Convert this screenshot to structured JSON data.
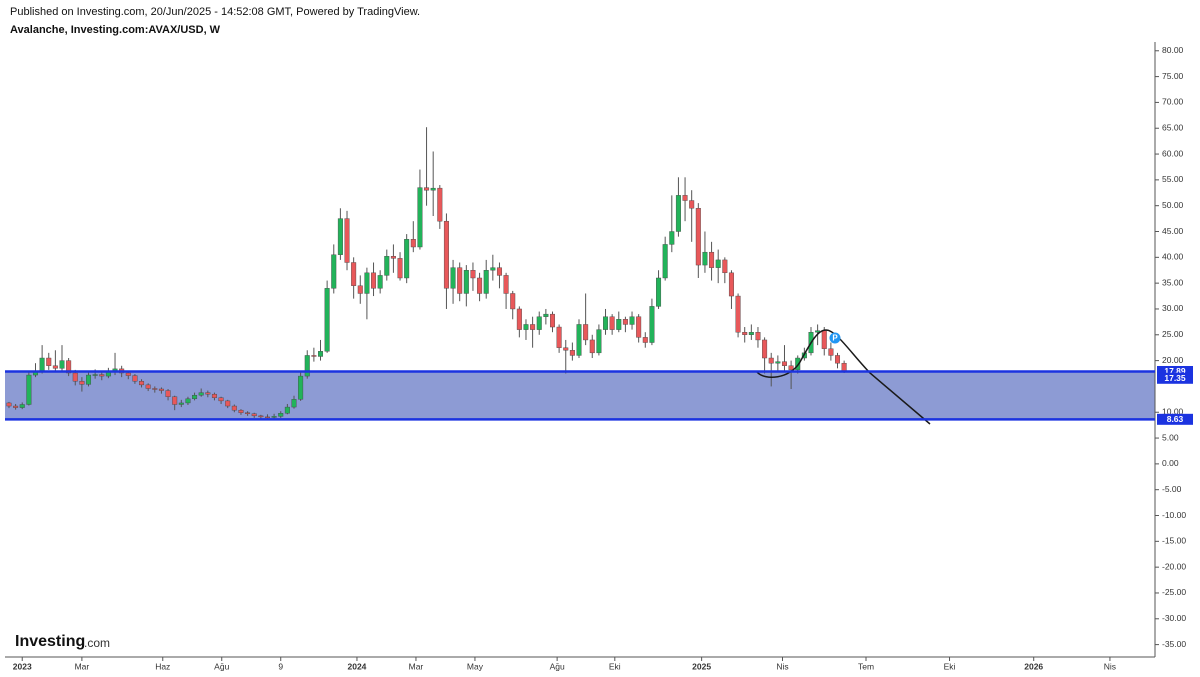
{
  "source": "Published on Investing.com, 20/Jun/2025 - 14:52:08 GMT, Powered by TradingView.",
  "chart_data": {
    "type": "candlestick",
    "title": "Avalanche, Investing.com:AVAX/USD, W",
    "open": [
      11.8,
      11.2,
      10.9,
      11.5,
      17.2,
      18.0,
      20.5,
      19.0,
      18.5,
      20.0,
      17.6,
      16.0,
      15.4,
      17.2,
      17.3,
      17.0,
      17.8,
      18.4,
      17.6,
      17.1,
      16.0,
      15.3,
      14.6,
      14.5,
      14.2,
      13.0,
      11.5,
      11.8,
      12.6,
      13.3,
      13.8,
      13.5,
      12.8,
      12.2,
      11.2,
      10.4,
      9.9,
      9.7,
      9.3,
      9.1,
      9.0,
      9.2,
      9.8,
      11.0,
      12.5,
      17.0,
      21.0,
      20.8,
      21.8,
      34.0,
      40.5,
      47.5,
      39.0,
      34.5,
      33.0,
      37.0,
      34.0,
      36.5,
      40.2,
      39.8,
      36.0,
      43.5,
      42.0,
      53.5,
      53.0,
      53.4,
      47.0,
      34.0,
      38.0,
      33.0,
      37.5,
      36.0,
      33.0,
      37.5,
      38.0,
      36.5,
      33.0,
      30.0,
      26.0,
      27.0,
      26.0,
      28.5,
      29.0,
      26.5,
      22.5,
      22.0,
      21.0,
      27.0,
      24.0,
      21.5,
      26.0,
      28.5,
      26.0,
      28.0,
      27.0,
      28.5,
      24.5,
      23.5,
      30.5,
      36.0,
      42.5,
      45.0,
      52.0,
      51.0,
      49.5,
      38.5,
      41.0,
      38.0,
      39.5,
      37.0,
      32.5,
      25.5,
      25.0,
      25.5,
      24.0,
      20.5,
      19.5,
      19.8,
      19.0,
      18.2,
      20.5,
      21.5,
      25.5,
      25.8,
      22.3,
      21.0,
      19.5
    ],
    "high": [
      12.0,
      11.6,
      11.9,
      18.0,
      19.5,
      23.0,
      21.5,
      22.0,
      23.0,
      20.5,
      18.2,
      16.8,
      17.8,
      18.3,
      18.0,
      18.6,
      21.5,
      19.0,
      18.0,
      17.4,
      16.4,
      15.6,
      15.0,
      14.8,
      14.5,
      13.2,
      12.4,
      13.0,
      13.8,
      14.6,
      14.2,
      13.8,
      13.0,
      12.4,
      11.5,
      10.6,
      10.2,
      9.9,
      9.5,
      9.6,
      9.7,
      10.2,
      11.6,
      13.2,
      17.8,
      22.0,
      22.5,
      24.0,
      35.5,
      42.5,
      49.5,
      49.0,
      40.0,
      36.5,
      38.0,
      39.0,
      37.5,
      41.5,
      42.5,
      41.0,
      44.5,
      47.0,
      57.0,
      65.2,
      60.5,
      54.0,
      48.5,
      39.5,
      39.0,
      38.5,
      39.0,
      37.0,
      39.5,
      40.5,
      39.0,
      37.0,
      33.5,
      30.5,
      28.0,
      28.5,
      29.5,
      30.0,
      29.5,
      27.0,
      24.0,
      23.5,
      28.0,
      33.0,
      25.0,
      27.0,
      30.0,
      29.0,
      29.5,
      28.5,
      29.5,
      29.0,
      25.5,
      32.0,
      37.5,
      44.0,
      52.0,
      55.5,
      55.5,
      53.0,
      50.5,
      45.0,
      43.0,
      41.5,
      40.0,
      37.5,
      33.0,
      26.5,
      27.0,
      26.5,
      24.5,
      21.5,
      21.0,
      23.0,
      20.0,
      21.0,
      22.5,
      26.5,
      27.0,
      26.5,
      23.5,
      21.5,
      20.0
    ],
    "low": [
      10.8,
      10.5,
      10.6,
      11.3,
      16.8,
      17.5,
      18.2,
      17.8,
      18.0,
      17.0,
      15.2,
      14.0,
      15.0,
      16.5,
      16.2,
      16.6,
      17.2,
      16.8,
      16.4,
      15.5,
      14.8,
      14.1,
      13.8,
      13.6,
      12.3,
      10.4,
      11.0,
      11.4,
      12.3,
      13.0,
      12.9,
      12.3,
      11.6,
      10.8,
      10.0,
      9.5,
      9.3,
      8.9,
      8.7,
      8.6,
      8.7,
      8.9,
      9.6,
      10.7,
      12.2,
      16.5,
      19.8,
      20.0,
      21.5,
      33.0,
      39.5,
      37.5,
      32.0,
      31.0,
      28.0,
      32.5,
      33.0,
      35.5,
      37.0,
      35.5,
      35.0,
      41.0,
      41.5,
      50.0,
      48.0,
      45.5,
      30.0,
      31.0,
      31.5,
      30.5,
      33.5,
      31.5,
      32.0,
      35.5,
      34.0,
      30.0,
      28.0,
      24.5,
      24.0,
      22.5,
      25.0,
      27.0,
      25.5,
      21.5,
      17.5,
      20.0,
      20.5,
      23.0,
      20.5,
      21.0,
      25.0,
      25.0,
      25.5,
      25.5,
      26.0,
      23.5,
      22.5,
      23.0,
      30.0,
      35.5,
      41.0,
      44.0,
      47.0,
      43.0,
      36.0,
      37.0,
      35.5,
      35.0,
      35.0,
      30.0,
      24.5,
      23.5,
      24.0,
      22.5,
      17.5,
      15.0,
      18.0,
      18.0,
      14.5,
      17.5,
      20.0,
      21.0,
      23.0,
      21.0,
      20.0,
      18.5,
      17.6
    ],
    "close": [
      11.2,
      10.9,
      11.5,
      17.2,
      18.0,
      20.5,
      19.0,
      18.5,
      20.0,
      17.6,
      16.0,
      15.4,
      17.2,
      17.3,
      17.0,
      17.8,
      18.4,
      17.6,
      17.1,
      16.0,
      15.3,
      14.6,
      14.5,
      14.2,
      13.0,
      11.5,
      11.8,
      12.6,
      13.3,
      13.8,
      13.5,
      12.8,
      12.2,
      11.2,
      10.4,
      9.9,
      9.7,
      9.3,
      9.1,
      9.0,
      9.2,
      9.8,
      11.0,
      12.5,
      17.0,
      21.0,
      20.8,
      21.8,
      34.0,
      40.5,
      47.5,
      39.0,
      34.5,
      33.0,
      37.0,
      34.0,
      36.5,
      40.2,
      39.8,
      36.0,
      43.5,
      42.0,
      53.5,
      53.0,
      53.4,
      47.0,
      34.0,
      38.0,
      33.0,
      37.5,
      36.0,
      33.0,
      37.5,
      38.0,
      36.5,
      33.0,
      30.0,
      26.0,
      27.0,
      26.0,
      28.5,
      29.0,
      26.5,
      22.5,
      22.0,
      21.0,
      27.0,
      24.0,
      21.5,
      26.0,
      28.5,
      26.0,
      28.0,
      27.0,
      28.5,
      24.5,
      23.5,
      30.5,
      36.0,
      42.5,
      45.0,
      52.0,
      51.0,
      49.5,
      38.5,
      41.0,
      38.0,
      39.5,
      37.0,
      32.5,
      25.5,
      25.0,
      25.5,
      24.0,
      20.5,
      19.5,
      19.8,
      19.0,
      18.2,
      20.5,
      21.5,
      25.5,
      25.8,
      22.3,
      21.0,
      19.5,
      17.9
    ],
    "up_color": "#22b35a",
    "down_color": "#e8585a",
    "xlim": [
      -0.6,
      172.9
    ],
    "xticks": [
      {
        "value": 2,
        "label": "2023"
      },
      {
        "value": 11,
        "label": "Mar"
      },
      {
        "value": 23.2,
        "label": "Haz"
      },
      {
        "value": 32.1,
        "label": "Ağu"
      },
      {
        "value": 41,
        "label": "9"
      },
      {
        "value": 52.5,
        "label": "2024"
      },
      {
        "value": 61.4,
        "label": "Mar"
      },
      {
        "value": 70.3,
        "label": "May"
      },
      {
        "value": 82.7,
        "label": "Ağu"
      },
      {
        "value": 91.4,
        "label": "Eki"
      },
      {
        "value": 104.5,
        "label": "2025"
      },
      {
        "value": 116.7,
        "label": "Nis"
      },
      {
        "value": 129.3,
        "label": "Tem"
      },
      {
        "value": 141.9,
        "label": "Eki"
      },
      {
        "value": 154.6,
        "label": "2026"
      },
      {
        "value": 166.1,
        "label": "Nis"
      }
    ],
    "ylim": [
      -37.4,
      81.7
    ],
    "yticks": [
      {
        "value": 80,
        "label": "80.00"
      },
      {
        "value": 75,
        "label": "75.00"
      },
      {
        "value": 70,
        "label": "70.00"
      },
      {
        "value": 65,
        "label": "65.00"
      },
      {
        "value": 60,
        "label": "60.00"
      },
      {
        "value": 55,
        "label": "55.00"
      },
      {
        "value": 50,
        "label": "50.00"
      },
      {
        "value": 45,
        "label": "45.00"
      },
      {
        "value": 40,
        "label": "40.00"
      },
      {
        "value": 35,
        "label": "35.00"
      },
      {
        "value": 30,
        "label": "30.00"
      },
      {
        "value": 25,
        "label": "25.00"
      },
      {
        "value": 20,
        "label": "20.00"
      },
      {
        "value": 10,
        "label": "10.00"
      },
      {
        "value": 5,
        "label": "5.00"
      },
      {
        "value": 0,
        "label": "0.00"
      },
      {
        "value": -5,
        "label": "-5.00"
      },
      {
        "value": -10,
        "label": "-10.00"
      },
      {
        "value": -15,
        "label": "-15.00"
      },
      {
        "value": -20,
        "label": "-20.00"
      },
      {
        "value": -25,
        "label": "-25.00"
      },
      {
        "value": -30,
        "label": "-30.00"
      },
      {
        "value": -35,
        "label": "-35.00"
      }
    ],
    "price_levels": [
      17.89,
      17.35,
      8.63
    ],
    "zone_color": "#8796d2",
    "level_color": "#1b33e0",
    "marker_label": "P",
    "logo": "Investing",
    "logo_suffix": ".com"
  }
}
